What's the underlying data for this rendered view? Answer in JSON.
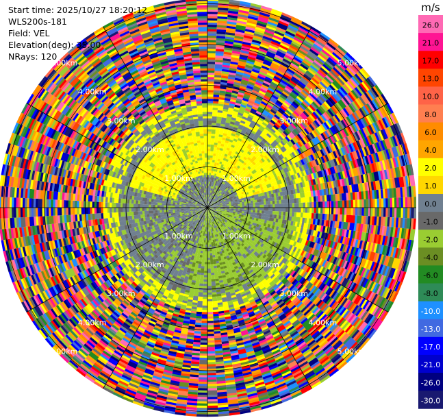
{
  "header": {
    "start_time": "Start time: 2025/10/27 18:20:12",
    "instrument": "WLS200s-181",
    "field": "Field: VEL",
    "elevation": "Elevation(deg): 35.00",
    "nrays": "NRays: 120"
  },
  "chart_data": {
    "type": "heatmap",
    "subtype": "polar-ppi",
    "field": "VEL",
    "units": "m/s",
    "n_rays": 120,
    "elevation_deg": 35.0,
    "range_ring_labels": [
      "1.00km",
      "2.00km",
      "3.00km",
      "4.00km",
      "5.00km"
    ],
    "spokes_deg": [
      0,
      30,
      60,
      90,
      120,
      150,
      180,
      210,
      240,
      270,
      300,
      330
    ],
    "colorbar": {
      "label": "m/s",
      "tick_labels": [
        "26.0",
        "21.0",
        "17.0",
        "13.0",
        "10.0",
        "8.0",
        "6.0",
        "4.0",
        "2.0",
        "1.0",
        "0.0",
        "-1.0",
        "-2.0",
        "-4.0",
        "-6.0",
        "-8.0",
        "-10.0",
        "-13.0",
        "-17.0",
        "-21.0",
        "-26.0",
        "-30.0"
      ],
      "colors": [
        "#ff69b4",
        "#ff1493",
        "#ff0000",
        "#ff4500",
        "#ff6347",
        "#ff7f50",
        "#ff8c00",
        "#ffa500",
        "#ffff00",
        "#ffd700",
        "#708090",
        "#696969",
        "#9acd32",
        "#6b8e23",
        "#228b22",
        "#2e8b57",
        "#1e90ff",
        "#4169e1",
        "#0000ff",
        "#0000cd",
        "#000080",
        "#191970"
      ]
    }
  }
}
